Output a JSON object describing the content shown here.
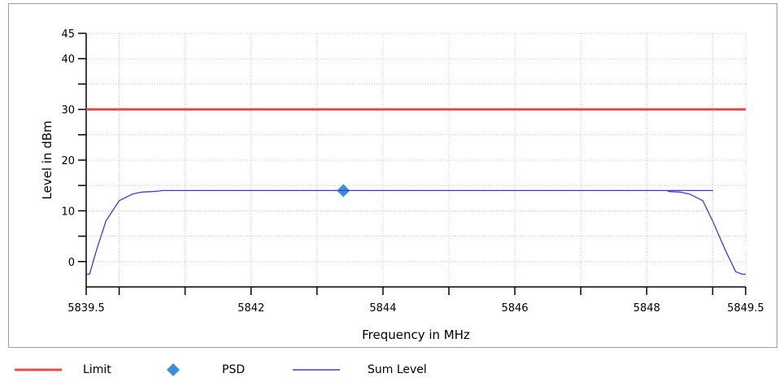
{
  "chart_data": {
    "type": "line",
    "title": "",
    "xlabel": "Frequency in MHz",
    "ylabel": "Level in dBm",
    "xlim": [
      5839.5,
      5849.5
    ],
    "ylim": [
      -5,
      45
    ],
    "x_ticks": [
      5839.5,
      5840,
      5841,
      5842,
      5843,
      5844,
      5845,
      5846,
      5847,
      5848,
      5849,
      5849.5
    ],
    "x_tick_labels": [
      {
        "value": 5839.5,
        "label": "5839.5"
      },
      {
        "value": 5842,
        "label": "5842"
      },
      {
        "value": 5844,
        "label": "5844"
      },
      {
        "value": 5846,
        "label": "5846"
      },
      {
        "value": 5848,
        "label": "5848"
      },
      {
        "value": 5849.5,
        "label": "5849.5"
      }
    ],
    "y_ticks": [
      0,
      5,
      10,
      15,
      20,
      25,
      30,
      35,
      40,
      45
    ],
    "y_tick_labels": [
      {
        "value": 0,
        "label": "0"
      },
      {
        "value": 10,
        "label": "10"
      },
      {
        "value": 20,
        "label": "20"
      },
      {
        "value": 30,
        "label": "30"
      },
      {
        "value": 40,
        "label": "40"
      },
      {
        "value": 45,
        "label": "45"
      }
    ],
    "grid": true,
    "legend": "bottom",
    "series": [
      {
        "name": "Limit",
        "kind": "line",
        "color": "#e84c4c",
        "x": [
          5839.5,
          5849.5
        ],
        "y": [
          30,
          30
        ]
      },
      {
        "name": "PSD",
        "kind": "marker",
        "color": "#3a8fdc",
        "x": [
          5843.4
        ],
        "y": [
          14
        ]
      },
      {
        "name": "Sum Level",
        "kind": "line",
        "color": "#3a3ad8",
        "x": [
          5839.5,
          5839.55,
          5839.65,
          5839.8,
          5840.0,
          5840.2,
          5840.35,
          5840.5,
          5840.6,
          5840.65,
          5849.0,
          5848.3,
          5848.35,
          5848.5,
          5848.65,
          5848.85,
          5849.0,
          5849.2,
          5849.35,
          5849.45,
          5849.5
        ],
        "y": [
          -2.5,
          -2.5,
          2,
          8,
          12,
          13.3,
          13.7,
          13.8,
          13.9,
          14,
          14,
          14,
          13.8,
          13.7,
          13.3,
          12,
          8,
          2,
          -2,
          -2.5,
          -2.5
        ]
      }
    ]
  },
  "legend_items": [
    {
      "label": "Limit"
    },
    {
      "label": "PSD"
    },
    {
      "label": "Sum Level"
    }
  ]
}
